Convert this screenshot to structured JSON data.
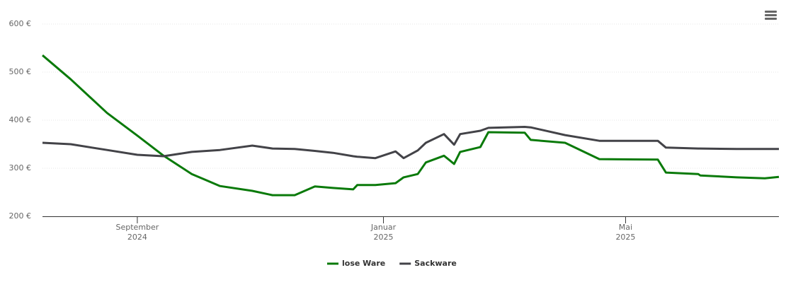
{
  "chart_data": {
    "type": "line",
    "x": [
      -47,
      -33,
      -15,
      0,
      13,
      27,
      41,
      57,
      67,
      78,
      88,
      97,
      107,
      109,
      118,
      128,
      132,
      139,
      143,
      152,
      157,
      160,
      170,
      174,
      192,
      195,
      212,
      229,
      258,
      262,
      278,
      279,
      297,
      311,
      318
    ],
    "series": [
      {
        "name": "lose Ware",
        "color": "#0a7a0a",
        "values": [
          535,
          485,
          415,
          368,
          326,
          288,
          263,
          253,
          244,
          244,
          262,
          259,
          256,
          265,
          265,
          269,
          281,
          288,
          312,
          326,
          309,
          334,
          344,
          375,
          374,
          359,
          353,
          319,
          318,
          291,
          288,
          285,
          281,
          279,
          282
        ]
      },
      {
        "name": "Sackware",
        "color": "#434348",
        "values": [
          353,
          350,
          338,
          328,
          325,
          334,
          338,
          347,
          341,
          340,
          336,
          332,
          325,
          324,
          321,
          335,
          321,
          337,
          353,
          371,
          349,
          371,
          378,
          384,
          386,
          385,
          369,
          357,
          357,
          343,
          341,
          341,
          340,
          340,
          340
        ]
      }
    ],
    "xlim": [
      -47,
      318
    ],
    "xticks": [
      {
        "value": 0,
        "label": "September 2024"
      },
      {
        "value": 122,
        "label": "Januar 2025"
      },
      {
        "value": 242,
        "label": "Mai 2025"
      }
    ],
    "ylim": [
      200,
      600
    ],
    "yticks": [
      {
        "value": 200,
        "label": "200 €"
      },
      {
        "value": 300,
        "label": "300 €"
      },
      {
        "value": 400,
        "label": "400 €"
      },
      {
        "value": 500,
        "label": "500 €"
      },
      {
        "value": 600,
        "label": "600 €"
      }
    ],
    "grid": true
  }
}
